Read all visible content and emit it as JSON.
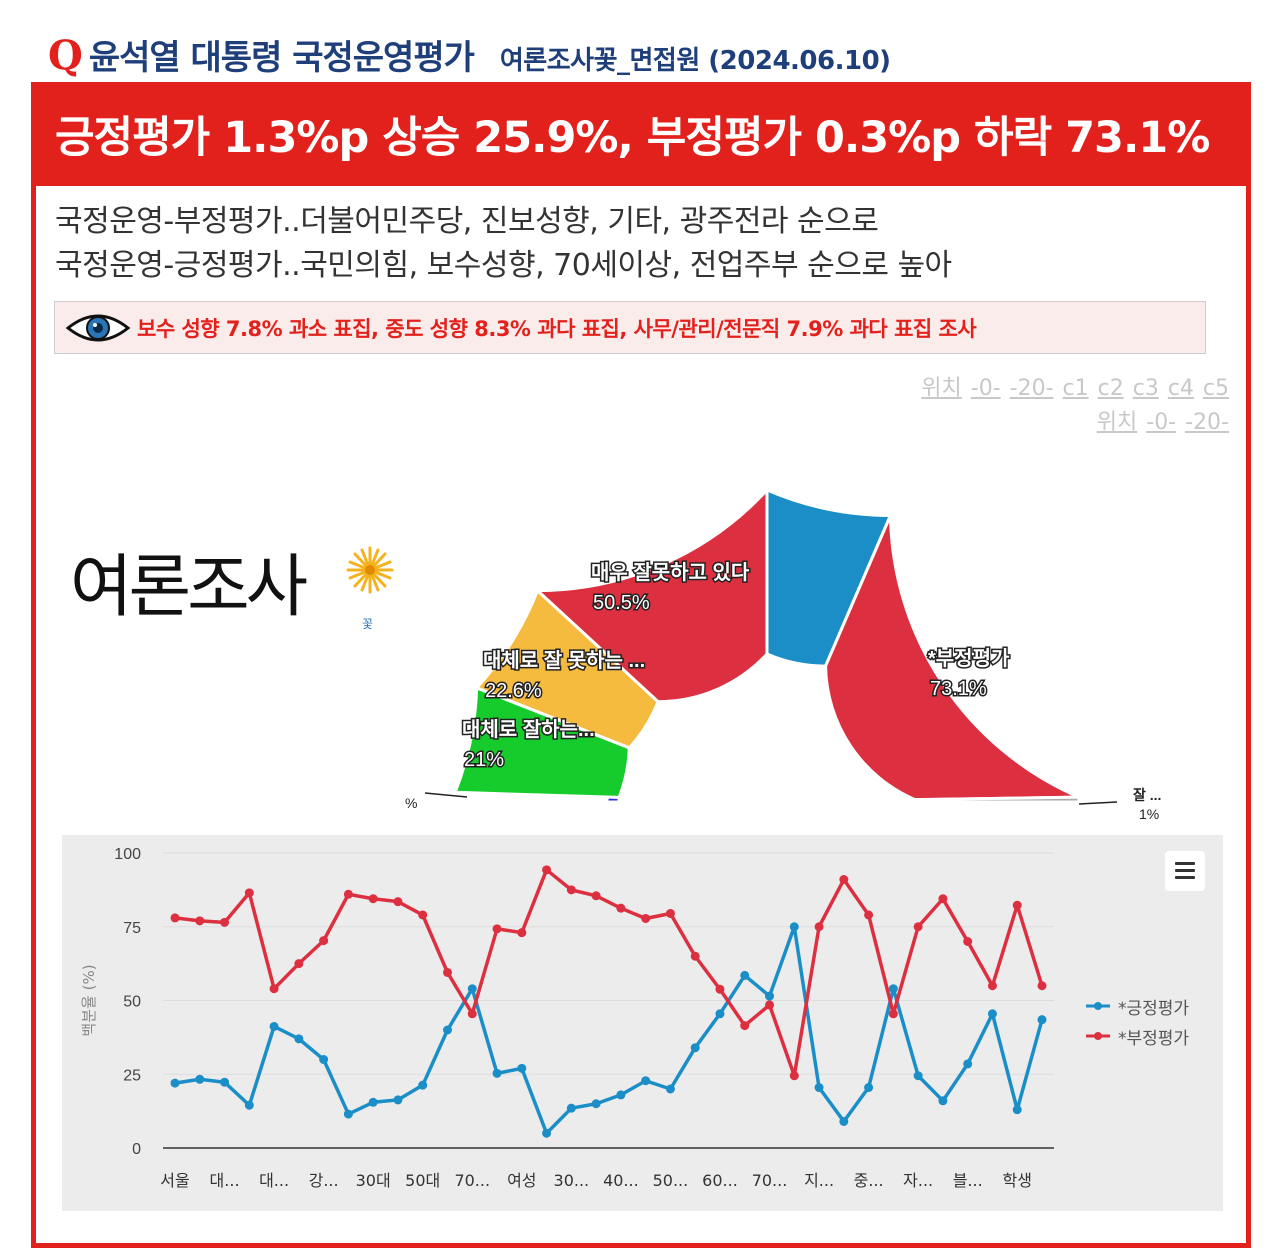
{
  "header": {
    "logo_letter": "Q",
    "title": "윤석열 대통령 국정운영평가",
    "subtitle": "여론조사꽃_면접원 (2024.06.10)"
  },
  "headline": "긍정평가 1.3%p 상승 25.9%, 부정평가 0.3%p 하락 73.1%",
  "summary": {
    "line1": "국정운영-부정평가..더불어민주당, 진보성향, 기타, 광주전라 순으로",
    "line2": "국정운영-긍정평가..국민의힘, 보수성향, 70세이상, 전업주부 순으로 높아"
  },
  "note": {
    "icon": "eye-icon",
    "text": "보수 성향 7.8% 과소 표집, 중도 성향 8.3% 과다 표집, 사무/관리/전문직 7.9% 과다 표집 조사"
  },
  "position_links": {
    "row1": [
      "위치",
      "-0-",
      "-20-",
      "c1",
      "c2",
      "c3",
      "c4",
      "c5"
    ],
    "row2": [
      "위치",
      "-0-",
      "-20-"
    ]
  },
  "brand_logo": {
    "text": "여론조사",
    "small": "꽃"
  },
  "colors": {
    "accent_red": "#e3211c",
    "title_navy": "#1f3f7a",
    "positive_blue": "#1b8ec7",
    "negative_red": "#dc3041"
  },
  "chart_data": [
    {
      "type": "pie",
      "variant": "semi-circle donut",
      "slices": [
        {
          "label": "",
          "value": 1.9,
          "color": "#2a2ee6",
          "label_text": "",
          "value_text": "%"
        },
        {
          "label": "대체로 잘하는...",
          "value": 21,
          "color": "#16cc2d",
          "value_text": "21%"
        },
        {
          "label": "대체로 잘 못하는 ...",
          "value": 22.6,
          "color": "#f4bb3f",
          "value_text": "22.6%"
        },
        {
          "label": "매우 잘못하고 있다",
          "value": 50.5,
          "color": "#dc3041",
          "value_text": "50.5%"
        },
        {
          "label": "",
          "value": 25.9,
          "color": "#1b8ec7",
          "value_text": ""
        },
        {
          "label": "*부정평가",
          "value": 73.1,
          "color": "#dc3041",
          "value_text": "73.1%"
        },
        {
          "label": "잘 ...",
          "value": 1,
          "color": "#aaaaaa",
          "value_text": "1%"
        }
      ]
    },
    {
      "type": "line",
      "ylabel": "백분율 (%)",
      "ylim": [
        0,
        100
      ],
      "yticks": [
        0,
        25,
        50,
        75,
        100
      ],
      "grid": true,
      "legend_position": "right",
      "x_labels": [
        "서울",
        "대...",
        "대...",
        "강...",
        "30대",
        "50대",
        "70...",
        "여성",
        "30...",
        "40...",
        "50...",
        "60...",
        "70...",
        "지...",
        "중...",
        "자...",
        "블...",
        "학생"
      ],
      "x_label_every": 2,
      "series": [
        {
          "name": "*긍정평가",
          "color": "#1b8ec7",
          "values": [
            22,
            23.3,
            22.3,
            14.5,
            41.2,
            37,
            30,
            11.5,
            15.5,
            16.3,
            21.3,
            40,
            54,
            25.3,
            27,
            5,
            13.5,
            15,
            18,
            22.8,
            20,
            34,
            45.5,
            58.5,
            51.5,
            75,
            20.5,
            9,
            20.5,
            54,
            24.5,
            16,
            28.5,
            45.5,
            13,
            43.5
          ]
        },
        {
          "name": "*부정평가",
          "color": "#dc3041",
          "values": [
            78,
            77,
            76.5,
            86.5,
            54,
            62.5,
            70.3,
            86,
            84.5,
            83.5,
            79,
            59.5,
            45.5,
            74.3,
            73,
            94.3,
            87.5,
            85.5,
            81.3,
            77.8,
            79.5,
            65,
            53.8,
            41.5,
            48.5,
            24.5,
            75,
            91,
            79,
            45.5,
            75,
            84.5,
            70,
            55,
            82.3,
            55
          ]
        }
      ]
    }
  ]
}
